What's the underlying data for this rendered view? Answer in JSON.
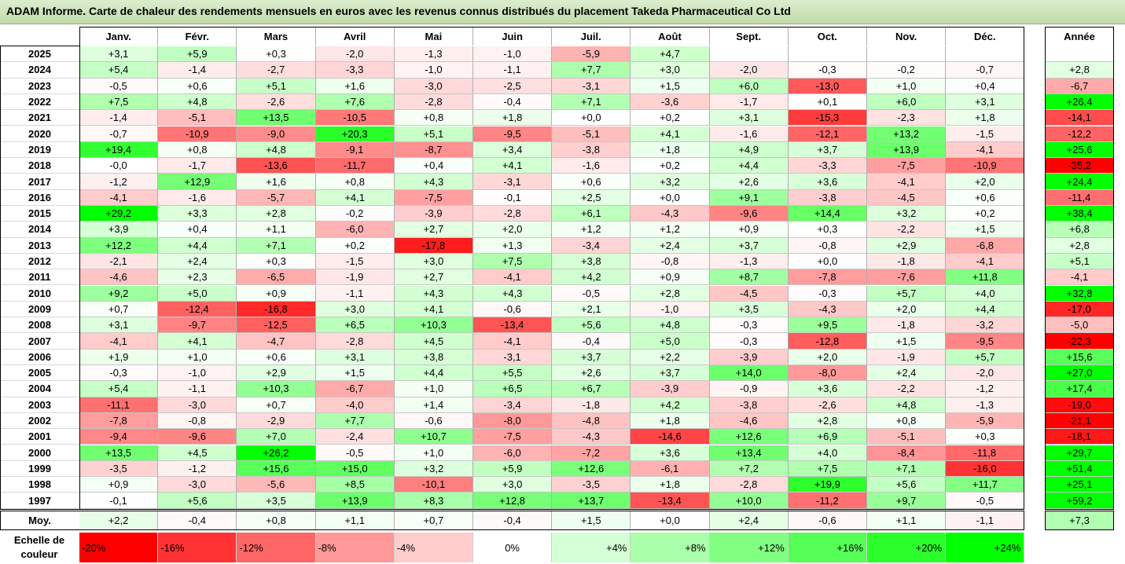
{
  "title": "ADAM Informe. Carte de chaleur des rendements mensuels en euros avec les revenus connus distribués du placement Takeda Pharmaceutical Co Ltd",
  "chart_data": {
    "type": "heatmap",
    "months": [
      "Janv.",
      "Févr.",
      "Mars",
      "Avril",
      "Mai",
      "Juin",
      "Juil.",
      "Août",
      "Sept.",
      "Oct.",
      "Nov.",
      "Déc."
    ],
    "annual_header": "Année",
    "rows": [
      {
        "year": "2025",
        "values": [
          "+3,1",
          "+5,9",
          "+0,3",
          "-2,0",
          "-1,3",
          "-1,0",
          "-5,9",
          "+4,7",
          "",
          "",
          "",
          ""
        ],
        "annual": ""
      },
      {
        "year": "2024",
        "values": [
          "+5,4",
          "-1,4",
          "-2,7",
          "-3,3",
          "-1,0",
          "-1,1",
          "+7,7",
          "+3,0",
          "-2,0",
          "-0,3",
          "-0,2",
          "-0,7"
        ],
        "annual": "+2,8"
      },
      {
        "year": "2023",
        "values": [
          "-0,5",
          "+0,6",
          "+5,1",
          "+1,6",
          "-3,0",
          "-2,5",
          "-3,1",
          "+1,5",
          "+6,0",
          "-13,0",
          "+1,0",
          "+0,4"
        ],
        "annual": "-6,7"
      },
      {
        "year": "2022",
        "values": [
          "+7,5",
          "+4,8",
          "-2,6",
          "+7,6",
          "-2,8",
          "-0,4",
          "+7,1",
          "-3,6",
          "-1,7",
          "+0,1",
          "+6,0",
          "+3,1"
        ],
        "annual": "+26,4"
      },
      {
        "year": "2021",
        "values": [
          "-1,4",
          "-5,1",
          "+13,5",
          "-10,5",
          "+0,8",
          "+1,8",
          "+0,0",
          "+0,2",
          "+3,1",
          "-15,3",
          "-2,3",
          "+1,8"
        ],
        "annual": "-14,1"
      },
      {
        "year": "2020",
        "values": [
          "-0,7",
          "-10,9",
          "-9,0",
          "+20,3",
          "+5,1",
          "-9,5",
          "-5,1",
          "+4,1",
          "-1,6",
          "-12,1",
          "+13,2",
          "-1,5"
        ],
        "annual": "-12,2"
      },
      {
        "year": "2019",
        "values": [
          "+19,4",
          "+0,8",
          "+4,8",
          "-9,1",
          "-8,7",
          "+3,4",
          "-3,8",
          "+1,8",
          "+4,9",
          "+3,7",
          "+13,9",
          "-4,1"
        ],
        "annual": "+25,6"
      },
      {
        "year": "2018",
        "values": [
          "-0,0",
          "-1,7",
          "-13,6",
          "-11,7",
          "+0,4",
          "+4,1",
          "-1,6",
          "+0,2",
          "+4,4",
          "-3,3",
          "-7,5",
          "-10,9"
        ],
        "annual": "-35,2"
      },
      {
        "year": "2017",
        "values": [
          "-1,2",
          "+12,9",
          "+1,6",
          "+0,8",
          "+4,3",
          "-3,1",
          "+0,6",
          "+3,2",
          "+2,6",
          "+3,6",
          "-4,1",
          "+2,0"
        ],
        "annual": "+24,4"
      },
      {
        "year": "2016",
        "values": [
          "-4,1",
          "-1,6",
          "-5,7",
          "+4,1",
          "-7,5",
          "-0,1",
          "+2,5",
          "+0,0",
          "+9,1",
          "-3,8",
          "-4,5",
          "+0,6"
        ],
        "annual": "-11,4"
      },
      {
        "year": "2015",
        "values": [
          "+29,2",
          "+3,3",
          "+2,8",
          "-0,2",
          "-3,9",
          "-2,8",
          "+6,1",
          "-4,3",
          "-9,6",
          "+14,4",
          "+3,2",
          "+0,2"
        ],
        "annual": "+38,4"
      },
      {
        "year": "2014",
        "values": [
          "+3,9",
          "+0,4",
          "+1,1",
          "-6,0",
          "+2,7",
          "+2,0",
          "+1,2",
          "+1,2",
          "+0,9",
          "+0,3",
          "-2,2",
          "+1,5"
        ],
        "annual": "+6,8"
      },
      {
        "year": "2013",
        "values": [
          "+12,2",
          "+4,4",
          "+7,1",
          "+0,2",
          "-17,8",
          "+1,3",
          "-3,4",
          "+2,4",
          "+3,7",
          "-0,8",
          "+2,9",
          "-6,8"
        ],
        "annual": "+2,8"
      },
      {
        "year": "2012",
        "values": [
          "-2,1",
          "+2,4",
          "+0,3",
          "-1,5",
          "+3,0",
          "+7,5",
          "+3,8",
          "-0,8",
          "-1,3",
          "+0,0",
          "-1,8",
          "-4,1"
        ],
        "annual": "+5,1"
      },
      {
        "year": "2011",
        "values": [
          "-4,6",
          "+2,3",
          "-6,5",
          "-1,9",
          "+2,7",
          "-4,1",
          "+4,2",
          "+0,9",
          "+8,7",
          "-7,8",
          "-7,6",
          "+11,8"
        ],
        "annual": "-4,1"
      },
      {
        "year": "2010",
        "values": [
          "+9,2",
          "+5,0",
          "+0,9",
          "-1,1",
          "+4,3",
          "+4,3",
          "-0,5",
          "+2,8",
          "-4,5",
          "-0,3",
          "+5,7",
          "+4,0"
        ],
        "annual": "+32,8"
      },
      {
        "year": "2009",
        "values": [
          "+0,7",
          "-12,4",
          "-16,8",
          "+3,0",
          "+4,1",
          "-0,6",
          "+2,1",
          "-1,0",
          "+3,5",
          "-4,3",
          "+2,0",
          "+4,4"
        ],
        "annual": "-17,0"
      },
      {
        "year": "2008",
        "values": [
          "+3,1",
          "-9,7",
          "-12,5",
          "+6,5",
          "+10,3",
          "-13,4",
          "+5,6",
          "+4,8",
          "-0,3",
          "+9,5",
          "-1,8",
          "-3,2"
        ],
        "annual": "-5,0"
      },
      {
        "year": "2007",
        "values": [
          "-4,1",
          "+4,1",
          "-4,7",
          "-2,8",
          "+4,5",
          "-4,1",
          "-0,4",
          "+5,0",
          "-0,3",
          "-12,8",
          "+1,5",
          "-9,5"
        ],
        "annual": "-22,3"
      },
      {
        "year": "2006",
        "values": [
          "+1,9",
          "+1,0",
          "+0,6",
          "+3,1",
          "+3,8",
          "-3,1",
          "+3,7",
          "+2,2",
          "-3,9",
          "+2,0",
          "-1,9",
          "+5,7"
        ],
        "annual": "+15,6"
      },
      {
        "year": "2005",
        "values": [
          "-0,3",
          "-1,0",
          "+2,9",
          "+1,5",
          "+4,4",
          "+5,5",
          "+2,6",
          "+3,7",
          "+14,0",
          "-8,0",
          "+2,4",
          "-2,0"
        ],
        "annual": "+27,0"
      },
      {
        "year": "2004",
        "values": [
          "+5,4",
          "-1,1",
          "+10,3",
          "-6,7",
          "+1,0",
          "+6,5",
          "+6,7",
          "-3,9",
          "-0,9",
          "+3,6",
          "-2,2",
          "-1,2"
        ],
        "annual": "+17,4"
      },
      {
        "year": "2003",
        "values": [
          "-11,1",
          "-3,0",
          "+0,7",
          "-4,0",
          "+1,4",
          "-3,4",
          "-1,8",
          "+4,2",
          "-3,8",
          "-2,6",
          "+4,8",
          "-1,3"
        ],
        "annual": "-19,0"
      },
      {
        "year": "2002",
        "values": [
          "-7,8",
          "-0,8",
          "-2,9",
          "+7,7",
          "-0,6",
          "-8,0",
          "-4,8",
          "+1,8",
          "-4,6",
          "+2,8",
          "+0,8",
          "-5,9"
        ],
        "annual": "-21,1"
      },
      {
        "year": "2001",
        "values": [
          "-9,4",
          "-9,6",
          "+7,0",
          "-2,4",
          "+10,7",
          "-7,5",
          "-4,3",
          "-14,6",
          "+12,6",
          "+6,9",
          "-5,1",
          "+0,3"
        ],
        "annual": "-18,1"
      },
      {
        "year": "2000",
        "values": [
          "+13,5",
          "+4,5",
          "+26,2",
          "-0,5",
          "+1,0",
          "-6,0",
          "-7,2",
          "+3,6",
          "+13,4",
          "+4,0",
          "-8,4",
          "-11,8"
        ],
        "annual": "+29,7"
      },
      {
        "year": "1999",
        "values": [
          "-3,5",
          "-1,2",
          "+15,6",
          "+15,0",
          "+3,2",
          "+5,9",
          "+12,6",
          "-6,1",
          "+7,2",
          "+7,5",
          "+7,1",
          "-16,0"
        ],
        "annual": "+51,4"
      },
      {
        "year": "1998",
        "values": [
          "+0,9",
          "-3,0",
          "-5,6",
          "+8,5",
          "-10,1",
          "+3,0",
          "-3,5",
          "+1,8",
          "-2,8",
          "+19,9",
          "+5,6",
          "+11,7"
        ],
        "annual": "+25,1"
      },
      {
        "year": "1997",
        "values": [
          "-0,1",
          "+5,6",
          "+3,5",
          "+13,9",
          "+8,3",
          "+12,8",
          "+13,7",
          "-13,4",
          "+10,0",
          "-11,2",
          "+9,7",
          "-0,5"
        ],
        "annual": "+59,2"
      }
    ],
    "average": {
      "label": "Moy.",
      "values": [
        "+2,2",
        "-0,4",
        "+0,8",
        "+1,1",
        "+0,7",
        "-0,4",
        "+1,5",
        "+0,0",
        "+2,4",
        "-0,6",
        "+1,1",
        "-1,1"
      ],
      "annual": "+7,3"
    },
    "color_scale": {
      "label": "Echelle de couleur",
      "stops": [
        {
          "label": "-20%",
          "value": -20,
          "color": "#ff0000"
        },
        {
          "label": "-16%",
          "value": -16,
          "color": "#ff3333"
        },
        {
          "label": "-12%",
          "value": -12,
          "color": "#ff6666"
        },
        {
          "label": "-8%",
          "value": -8,
          "color": "#ff9999"
        },
        {
          "label": "-4%",
          "value": -4,
          "color": "#ffcccc"
        },
        {
          "label": "0%",
          "value": 0,
          "color": "#ffffff"
        },
        {
          "label": "+4%",
          "value": 4,
          "color": "#d4ffd4"
        },
        {
          "label": "+8%",
          "value": 8,
          "color": "#aaffaa"
        },
        {
          "label": "+12%",
          "value": 12,
          "color": "#80ff80"
        },
        {
          "label": "+16%",
          "value": 16,
          "color": "#55ff55"
        },
        {
          "label": "+20%",
          "value": 20,
          "color": "#2bff2b"
        },
        {
          "label": "+24%",
          "value": 24,
          "color": "#00ff00"
        }
      ]
    }
  }
}
